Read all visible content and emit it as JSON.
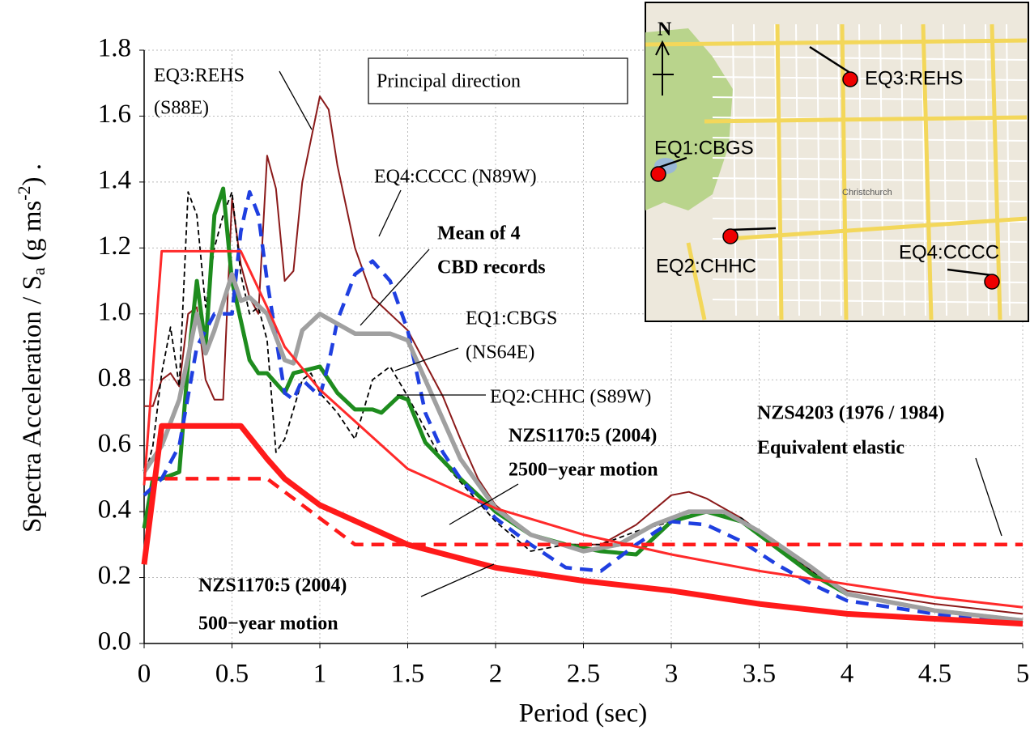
{
  "chart_data": {
    "type": "line",
    "xlabel": "Period (sec)",
    "ylabel_parts": [
      "Spectra Acceleration / S",
      "a",
      " (g ms",
      "-2",
      ") ."
    ],
    "xlim": [
      0,
      5
    ],
    "ylim": [
      0,
      1.8
    ],
    "xticks": [
      0,
      0.5,
      1,
      1.5,
      2,
      2.5,
      3,
      3.5,
      4,
      4.5,
      5
    ],
    "yticks": [
      {
        "value": 0,
        "label": "0.0"
      },
      0.2,
      0.4,
      0.6,
      0.8,
      {
        "value": 1,
        "label": "1.0"
      },
      1.2,
      1.4,
      1.6,
      1.8
    ],
    "grid": true,
    "series": [
      {
        "color": "#8b1a1a",
        "linewidth": 2,
        "dash": false,
        "x": [
          0,
          0.05,
          0.1,
          0.15,
          0.2,
          0.25,
          0.3,
          0.35,
          0.4,
          0.45,
          0.5,
          0.55,
          0.6,
          0.65,
          0.7,
          0.75,
          0.8,
          0.85,
          0.9,
          1,
          1.05,
          1.1,
          1.2,
          1.3,
          1.4,
          1.5,
          1.6,
          1.7,
          1.8,
          1.9,
          2,
          2.2,
          2.4,
          2.6,
          2.8,
          3,
          3.1,
          3.2,
          3.4,
          3.6,
          3.8,
          4,
          4.5,
          5
        ],
        "values": [
          0.72,
          0.72,
          0.8,
          0.82,
          0.78,
          1,
          1.02,
          0.8,
          0.74,
          0.74,
          1.35,
          1.15,
          1.05,
          1,
          1.48,
          1.38,
          1.1,
          1.13,
          1.4,
          1.66,
          1.62,
          1.45,
          1.2,
          1.05,
          1,
          0.95,
          0.85,
          0.75,
          0.62,
          0.5,
          0.42,
          0.33,
          0.3,
          0.3,
          0.36,
          0.45,
          0.46,
          0.44,
          0.38,
          0.3,
          0.22,
          0.16,
          0.12,
          0.09
        ]
      },
      {
        "color": "#000000",
        "linewidth": 1.8,
        "dash": true,
        "x": [
          0,
          0.05,
          0.1,
          0.15,
          0.2,
          0.25,
          0.3,
          0.35,
          0.4,
          0.45,
          0.5,
          0.55,
          0.6,
          0.65,
          0.7,
          0.75,
          0.8,
          0.9,
          0.95,
          1,
          1.1,
          1.2,
          1.3,
          1.4,
          1.5,
          1.7,
          1.9,
          2,
          2.2,
          2.4,
          2.6,
          2.8,
          3,
          3.2,
          3.4,
          3.6,
          3.8,
          4,
          4.5,
          5
        ],
        "values": [
          0.5,
          0.6,
          0.82,
          0.96,
          0.78,
          1.37,
          1.3,
          1.02,
          1.2,
          1.3,
          1.37,
          1.12,
          1,
          1.02,
          0.92,
          0.58,
          0.62,
          0.8,
          0.82,
          0.76,
          0.7,
          0.62,
          0.8,
          0.84,
          0.75,
          0.55,
          0.43,
          0.37,
          0.28,
          0.3,
          0.3,
          0.34,
          0.37,
          0.4,
          0.38,
          0.3,
          0.22,
          0.15,
          0.1,
          0.07
        ]
      },
      {
        "color": "#1e8c1e",
        "linewidth": 5,
        "dash": false,
        "x": [
          0,
          0.05,
          0.1,
          0.2,
          0.25,
          0.3,
          0.35,
          0.4,
          0.45,
          0.5,
          0.55,
          0.6,
          0.65,
          0.7,
          0.8,
          0.85,
          1,
          1.1,
          1.2,
          1.3,
          1.35,
          1.45,
          1.5,
          1.6,
          1.8,
          2,
          2.2,
          2.4,
          2.6,
          2.8,
          2.9,
          3,
          3.2,
          3.4,
          3.6,
          3.8,
          4,
          4.5,
          5
        ],
        "values": [
          0.35,
          0.5,
          0.5,
          0.52,
          0.85,
          1.1,
          0.9,
          1.3,
          1.38,
          1.1,
          0.98,
          0.86,
          0.82,
          0.82,
          0.76,
          0.82,
          0.84,
          0.76,
          0.71,
          0.71,
          0.7,
          0.75,
          0.74,
          0.61,
          0.5,
          0.4,
          0.33,
          0.3,
          0.28,
          0.27,
          0.32,
          0.37,
          0.4,
          0.37,
          0.29,
          0.21,
          0.15,
          0.1,
          0.07
        ]
      },
      {
        "color": "#1f3fe0",
        "linewidth": 4.5,
        "dash": true,
        "x": [
          0,
          0.1,
          0.2,
          0.3,
          0.4,
          0.5,
          0.55,
          0.6,
          0.65,
          0.7,
          0.8,
          0.85,
          0.9,
          1,
          1.05,
          1.1,
          1.2,
          1.3,
          1.4,
          1.5,
          1.6,
          1.7,
          1.8,
          2,
          2.2,
          2.4,
          2.6,
          2.8,
          3,
          3.2,
          3.4,
          3.6,
          3.8,
          4,
          4.5,
          5
        ],
        "values": [
          0.45,
          0.5,
          0.6,
          0.9,
          1,
          1,
          1.25,
          1.37,
          1.3,
          1.1,
          0.76,
          0.74,
          0.8,
          0.75,
          0.85,
          0.98,
          1.12,
          1.16,
          1.1,
          0.95,
          0.7,
          0.58,
          0.5,
          0.38,
          0.3,
          0.23,
          0.22,
          0.3,
          0.37,
          0.36,
          0.31,
          0.24,
          0.18,
          0.13,
          0.09,
          0.06
        ]
      },
      {
        "color": "#a0a0a0",
        "linewidth": 5.5,
        "dash": false,
        "x": [
          0,
          0.1,
          0.2,
          0.3,
          0.35,
          0.4,
          0.5,
          0.55,
          0.6,
          0.7,
          0.8,
          0.85,
          0.9,
          1,
          1.1,
          1.2,
          1.4,
          1.5,
          1.6,
          1.8,
          2,
          2.2,
          2.5,
          2.7,
          2.9,
          3.1,
          3.3,
          3.5,
          3.8,
          4,
          4.5,
          5
        ],
        "values": [
          0.52,
          0.6,
          0.74,
          1,
          0.88,
          0.95,
          1.12,
          1.04,
          1.05,
          1,
          0.86,
          0.85,
          0.95,
          1,
          0.97,
          0.94,
          0.94,
          0.92,
          0.8,
          0.56,
          0.41,
          0.33,
          0.28,
          0.3,
          0.36,
          0.4,
          0.4,
          0.34,
          0.23,
          0.15,
          0.1,
          0.07
        ]
      },
      {
        "color": "#ff2a2a",
        "linewidth": 3,
        "dash": false,
        "x": [
          0,
          0.1,
          0.55,
          0.7,
          0.8,
          1,
          1.5,
          2,
          2.5,
          3,
          3.5,
          4,
          4.5,
          5
        ],
        "values": [
          0.48,
          1.19,
          1.19,
          1.02,
          0.9,
          0.77,
          0.53,
          0.41,
          0.33,
          0.27,
          0.22,
          0.18,
          0.14,
          0.11
        ]
      },
      {
        "color": "#ff1a1a",
        "linewidth": 7,
        "dash": false,
        "x": [
          0,
          0.1,
          0.55,
          0.7,
          0.8,
          1,
          1.5,
          2,
          2.5,
          3,
          3.5,
          4,
          4.5,
          5
        ],
        "values": [
          0.24,
          0.66,
          0.66,
          0.56,
          0.5,
          0.42,
          0.3,
          0.23,
          0.19,
          0.16,
          0.12,
          0.09,
          0.075,
          0.06
        ]
      },
      {
        "color": "#ff1a1a",
        "linewidth": 4.5,
        "dash": true,
        "x": [
          0,
          0.7,
          1.2,
          5
        ],
        "values": [
          0.5,
          0.5,
          0.3,
          0.3
        ]
      }
    ],
    "annotations": [
      "EQ3:REHS",
      "(S88E)",
      "Principal direction",
      "EQ4:CCCC (N89W)",
      "Mean of 4",
      "CBD records",
      "EQ1:CBGS",
      "(NS64E)",
      "EQ2:CHHC (S89W)",
      "NZS1170:5 (2004)",
      "2500−year motion",
      "NZS4203 (1976 / 1984)",
      "Equivalent elastic",
      "NZS1170:5 (2004)",
      "500−year motion"
    ]
  },
  "inset_map": {
    "north": "N",
    "city": "Christchurch",
    "labels": [
      "EQ3:REHS",
      "EQ1:CBGS",
      "EQ2:CHHC",
      "EQ4:CCCC"
    ]
  }
}
